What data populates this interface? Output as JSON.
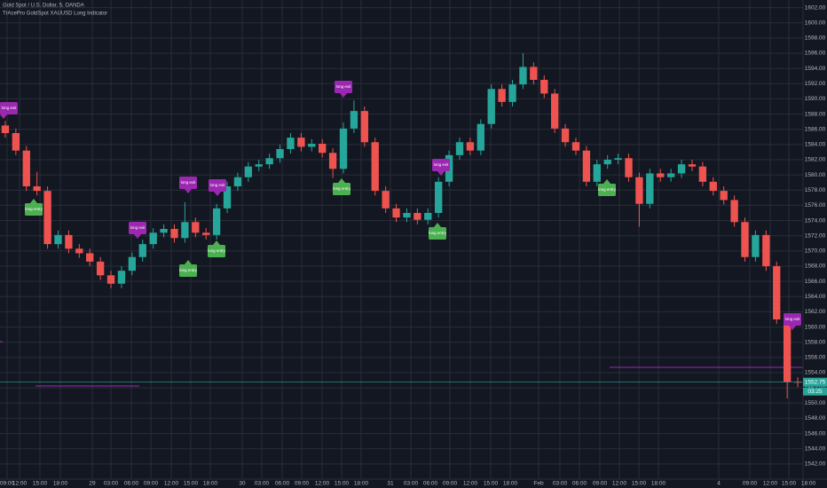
{
  "chart_data": {
    "type": "candlestick",
    "title": "Gold Spot / U.S. Dollar, 5, OANDA",
    "subtitle": "TrAcePro GoldSpot XAUUSD Long Indicator",
    "up_color": "#26a69a",
    "down_color": "#ef5350",
    "grid": true,
    "open": [
      1586.5,
      1585.5,
      1583.2,
      1578.5,
      1577.9,
      1570.9,
      1572.1,
      1570.3,
      1569.7,
      1568.6,
      1566.8,
      1565.7,
      1567.4,
      1569.2,
      1570.9,
      1572.4,
      1572.9,
      1571.7,
      1573.8,
      1572.4,
      1572.1,
      1575.6,
      1578.5,
      1579.7,
      1581.1,
      1581.4,
      1582.2,
      1583.4,
      1584.9,
      1583.7,
      1584.1,
      1582.9,
      1580.8,
      1586.1,
      1588.4,
      1584.3,
      1577.9,
      1575.6,
      1574.4,
      1575.0,
      1574.1,
      1575.0,
      1579.1,
      1582.6,
      1584.3,
      1583.2,
      1586.7,
      1591.3,
      1589.6,
      1591.9,
      1594.2,
      1592.5,
      1590.7,
      1586.1,
      1584.3,
      1583.2,
      1579.1,
      1581.4,
      1582.0,
      1582.2,
      1579.7,
      1576.2,
      1580.2,
      1579.7,
      1580.2,
      1581.4,
      1581.1,
      1579.1,
      1577.9,
      1576.7,
      1573.8,
      1569.2,
      1572.1,
      1568.0,
      1561.0,
      1552.8
    ],
    "high": [
      1587.1,
      1586.1,
      1583.8,
      1580.4,
      1578.5,
      1572.7,
      1572.7,
      1570.9,
      1570.3,
      1569.2,
      1567.4,
      1568.0,
      1569.8,
      1571.5,
      1573.0,
      1573.5,
      1573.5,
      1576.4,
      1574.4,
      1573.0,
      1576.2,
      1579.1,
      1580.3,
      1581.7,
      1582.0,
      1582.8,
      1584.0,
      1585.5,
      1585.5,
      1584.7,
      1584.7,
      1583.5,
      1586.9,
      1589.8,
      1589.0,
      1584.9,
      1578.5,
      1576.2,
      1575.6,
      1575.6,
      1575.6,
      1579.7,
      1583.2,
      1584.9,
      1584.9,
      1587.3,
      1591.9,
      1591.9,
      1592.5,
      1596.0,
      1594.8,
      1593.1,
      1591.3,
      1586.7,
      1584.9,
      1583.8,
      1582.0,
      1582.6,
      1582.8,
      1582.8,
      1580.3,
      1580.8,
      1580.8,
      1580.8,
      1582.0,
      1582.0,
      1581.7,
      1579.7,
      1578.5,
      1577.3,
      1574.4,
      1572.7,
      1572.7,
      1568.6,
      1561.6,
      1553.4
    ],
    "low": [
      1584.9,
      1582.6,
      1577.9,
      1577.3,
      1570.3,
      1570.3,
      1569.7,
      1569.1,
      1568.0,
      1566.2,
      1565.1,
      1565.1,
      1566.8,
      1568.6,
      1570.3,
      1571.8,
      1571.1,
      1571.1,
      1571.8,
      1571.5,
      1571.5,
      1575.0,
      1577.9,
      1579.1,
      1580.5,
      1580.8,
      1581.6,
      1582.8,
      1583.1,
      1583.1,
      1582.3,
      1579.6,
      1580.2,
      1585.5,
      1583.7,
      1577.3,
      1575.0,
      1573.8,
      1573.8,
      1573.5,
      1573.5,
      1574.4,
      1578.5,
      1582.0,
      1582.6,
      1582.6,
      1586.1,
      1589.0,
      1589.0,
      1591.3,
      1591.9,
      1590.1,
      1585.5,
      1583.7,
      1582.6,
      1578.5,
      1578.5,
      1580.8,
      1581.4,
      1579.1,
      1573.2,
      1575.6,
      1579.1,
      1579.1,
      1579.6,
      1580.5,
      1578.5,
      1577.3,
      1576.1,
      1573.2,
      1568.6,
      1568.6,
      1567.4,
      1560.4,
      1550.6,
      1552.1
    ],
    "close": [
      1585.5,
      1583.2,
      1578.5,
      1577.9,
      1570.9,
      1572.1,
      1570.3,
      1569.7,
      1568.6,
      1566.8,
      1565.7,
      1567.4,
      1569.2,
      1570.9,
      1572.4,
      1572.9,
      1571.7,
      1573.8,
      1572.4,
      1572.1,
      1575.6,
      1578.5,
      1579.7,
      1581.1,
      1581.4,
      1582.2,
      1583.4,
      1584.9,
      1583.7,
      1584.1,
      1582.9,
      1580.8,
      1586.1,
      1588.4,
      1584.3,
      1577.9,
      1575.6,
      1574.4,
      1575.0,
      1574.1,
      1575.0,
      1579.1,
      1582.6,
      1584.3,
      1583.2,
      1586.7,
      1591.3,
      1589.6,
      1591.9,
      1594.2,
      1592.5,
      1590.7,
      1586.1,
      1584.3,
      1583.2,
      1579.1,
      1581.4,
      1582.0,
      1582.2,
      1579.7,
      1576.2,
      1580.2,
      1579.7,
      1580.2,
      1581.4,
      1581.1,
      1579.1,
      1577.9,
      1576.7,
      1573.8,
      1569.2,
      1572.1,
      1568.0,
      1561.0,
      1552.8,
      1552.75
    ],
    "ylim": [
      1540,
      1603
    ],
    "yticks": [
      {
        "value": 1542,
        "label": "1542.00"
      },
      {
        "value": 1544,
        "label": "1544.00"
      },
      {
        "value": 1546,
        "label": "1546.00"
      },
      {
        "value": 1548,
        "label": "1548.00"
      },
      {
        "value": 1550,
        "label": "1550.00"
      },
      {
        "value": 1552,
        "label": "1552.00"
      },
      {
        "value": 1554,
        "label": "1554.00"
      },
      {
        "value": 1556,
        "label": "1556.00"
      },
      {
        "value": 1558,
        "label": "1558.00"
      },
      {
        "value": 1560,
        "label": "1560.00"
      },
      {
        "value": 1562,
        "label": "1562.00"
      },
      {
        "value": 1564,
        "label": "1564.00"
      },
      {
        "value": 1566,
        "label": "1566.00"
      },
      {
        "value": 1568,
        "label": "1568.00"
      },
      {
        "value": 1570,
        "label": "1570.00"
      },
      {
        "value": 1572,
        "label": "1572.00"
      },
      {
        "value": 1574,
        "label": "1574.00"
      },
      {
        "value": 1576,
        "label": "1576.00"
      },
      {
        "value": 1578,
        "label": "1578.00"
      },
      {
        "value": 1580,
        "label": "1580.00"
      },
      {
        "value": 1582,
        "label": "1582.00"
      },
      {
        "value": 1584,
        "label": "1584.00"
      },
      {
        "value": 1586,
        "label": "1586.00"
      },
      {
        "value": 1588,
        "label": "1588.00"
      },
      {
        "value": 1590,
        "label": "1590.00"
      },
      {
        "value": 1592,
        "label": "1592.00"
      },
      {
        "value": 1594,
        "label": "1594.00"
      },
      {
        "value": 1596,
        "label": "1596.00"
      },
      {
        "value": 1598,
        "label": "1598.00"
      },
      {
        "value": 1600,
        "label": "1600.00"
      },
      {
        "value": 1602,
        "label": "1602.00"
      }
    ],
    "time_labels": [
      "09:00",
      "12:00",
      "15:00",
      "18:00",
      "29",
      "03:00",
      "06:00",
      "09:00",
      "12:00",
      "15:00",
      "18:00",
      "30",
      "03:00",
      "06:00",
      "09:00",
      "12:00",
      "15:00",
      "18:00",
      "31",
      "03:00",
      "06:00",
      "09:00",
      "12:00",
      "15:00",
      "18:00",
      "Feb",
      "03:00",
      "06:00",
      "09:00",
      "12:00",
      "15:00",
      "18:00",
      "4",
      "09:00",
      "12:00",
      "15:00",
      "18:00"
    ],
    "annotations": [
      "long exit",
      "long entry",
      "long exit",
      "long exit",
      "long entry",
      "long exit",
      "long entry",
      "long exit",
      "long entry",
      "long exit",
      "long entry",
      "long entry",
      "long exit"
    ],
    "countdown": "03:25"
  }
}
